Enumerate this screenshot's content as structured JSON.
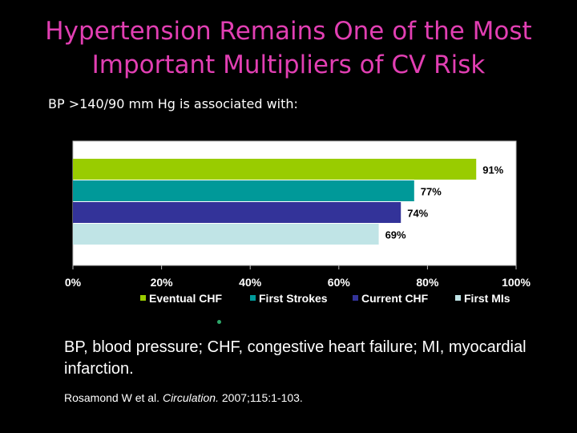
{
  "slide": {
    "title_line1": "Hypertension Remains One of the Most",
    "title_line2": "Important Multipliers of CV Risk",
    "subtitle": "BP >140/90 mm Hg is associated with:",
    "abbreviations": "BP, blood pressure; CHF, congestive heart failure; MI, myocardial infarction.",
    "citation": {
      "authors": "Rosamond W et al.",
      "journal": "Circulation.",
      "details": "2007;115:1-103."
    },
    "colors": {
      "title": "#e23fb3",
      "text": "#ffffff",
      "background": "#000000"
    }
  },
  "chart_data": {
    "type": "bar",
    "orientation": "horizontal",
    "categories": [
      "Eventual CHF",
      "First Strokes",
      "Current CHF",
      "First MIs"
    ],
    "values": [
      91,
      77,
      74,
      69
    ],
    "value_labels": [
      "91%",
      "77%",
      "74%",
      "69%"
    ],
    "colors": [
      "#99cc00",
      "#009999",
      "#333399",
      "#c0e4e6"
    ],
    "xlim": [
      0,
      100
    ],
    "x_ticks": [
      0,
      20,
      40,
      60,
      80,
      100
    ],
    "x_tick_labels": [
      "0%",
      "20%",
      "40%",
      "60%",
      "80%",
      "100%"
    ],
    "legend_position": "bottom",
    "grid": false
  }
}
